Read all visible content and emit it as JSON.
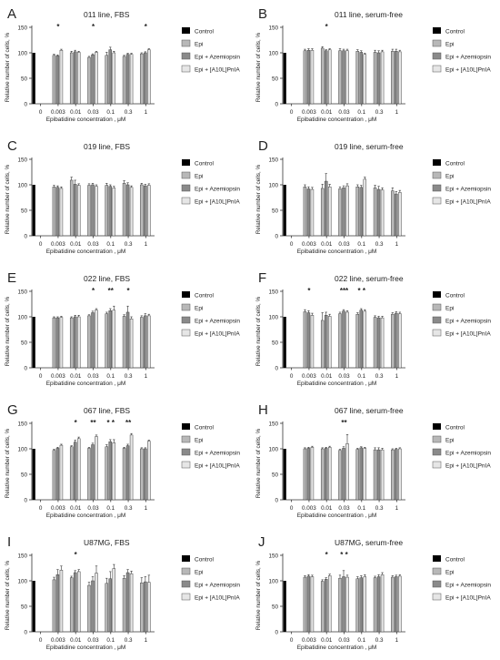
{
  "figure": {
    "legend_entries": [
      "Control",
      "Epi",
      "Epi + Azemiopsin",
      "Epi + [A10L]PnIA"
    ],
    "legend_colors": [
      "#000000",
      "#b8b8b8",
      "#8a8a8a",
      "#e6e6e6"
    ]
  },
  "chart_data": [
    {
      "panel": "A",
      "title": "011 line, FBS",
      "type": "bar",
      "xlabel": "Epibatidine concentration , μM",
      "ylabel": "Relative number of cells, %",
      "ylim": [
        0,
        150
      ],
      "yticks": [
        0,
        50,
        100,
        150
      ],
      "categories": [
        "0",
        "0.003",
        "0.01",
        "0.03",
        "0.1",
        "0.3",
        "1"
      ],
      "control": 100,
      "series": [
        {
          "name": "Epi",
          "values": [
            null,
            95,
            100,
            91,
            95,
            93,
            98
          ]
        },
        {
          "name": "Epi + Azemiopsin",
          "values": [
            null,
            94,
            102,
            96,
            106,
            97,
            100
          ]
        },
        {
          "name": "Epi + [A10L]PnIA",
          "values": [
            null,
            105,
            101,
            101,
            100,
            97,
            106
          ]
        }
      ],
      "errors": [
        [
          0,
          2,
          3,
          2,
          6,
          2,
          2
        ],
        [
          0,
          2,
          3,
          2,
          5,
          2,
          2
        ],
        [
          0,
          2,
          2,
          2,
          3,
          2,
          2
        ]
      ],
      "significance": [
        {
          "group": 1,
          "label": "*"
        },
        {
          "group": 3,
          "label": "*"
        },
        {
          "group": 6,
          "label": "*"
        }
      ]
    },
    {
      "panel": "B",
      "title": "011 line, serum-free",
      "type": "bar",
      "xlabel": "Epibatidine concentration , μM",
      "ylabel": "Relative number of cells, %",
      "ylim": [
        0,
        150
      ],
      "yticks": [
        0,
        50,
        100,
        150
      ],
      "categories": [
        "0",
        "0.003",
        "0.01",
        "0.03",
        "0.1",
        "0.3",
        "1"
      ],
      "control": 100,
      "series": [
        {
          "name": "Epi",
          "values": [
            null,
            104,
            109,
            104,
            103,
            101,
            103
          ]
        },
        {
          "name": "Epi + Azemiopsin",
          "values": [
            null,
            105,
            104,
            104,
            101,
            100,
            103
          ]
        },
        {
          "name": "Epi + [A10L]PnIA",
          "values": [
            null,
            105,
            106,
            104,
            97,
            102,
            102
          ]
        }
      ],
      "errors": [
        [
          0,
          3,
          3,
          4,
          3,
          4,
          4
        ],
        [
          0,
          3,
          2,
          3,
          3,
          4,
          4
        ],
        [
          0,
          3,
          2,
          3,
          2,
          3,
          3
        ]
      ],
      "significance": [
        {
          "group": 2,
          "label": "*"
        }
      ]
    },
    {
      "panel": "C",
      "title": "019 line, FBS",
      "type": "bar",
      "xlabel": "Epibatidine concentration , μM",
      "ylabel": "Relative number of cells, %",
      "ylim": [
        0,
        150
      ],
      "yticks": [
        0,
        50,
        100,
        150
      ],
      "categories": [
        "0",
        "0.003",
        "0.01",
        "0.03",
        "0.1",
        "0.3",
        "1"
      ],
      "control": 100,
      "series": [
        {
          "name": "Epi",
          "values": [
            null,
            96,
            109,
            99,
            99,
            103,
            100
          ]
        },
        {
          "name": "Epi + Azemiopsin",
          "values": [
            null,
            95,
            101,
            100,
            97,
            100,
            98
          ]
        },
        {
          "name": "Epi + [A10L]PnIA",
          "values": [
            null,
            93,
            99,
            97,
            94,
            95,
            99
          ]
        }
      ],
      "errors": [
        [
          0,
          3,
          6,
          3,
          4,
          5,
          3
        ],
        [
          0,
          3,
          8,
          3,
          3,
          4,
          3
        ],
        [
          0,
          3,
          3,
          3,
          3,
          3,
          3
        ]
      ],
      "significance": []
    },
    {
      "panel": "D",
      "title": "019 line, serum-free",
      "type": "bar",
      "xlabel": "Epibatidine concentration , μM",
      "ylabel": "Relative number of cells, %",
      "ylim": [
        0,
        150
      ],
      "yticks": [
        0,
        50,
        100,
        150
      ],
      "categories": [
        "0",
        "0.003",
        "0.01",
        "0.03",
        "0.1",
        "0.3",
        "1"
      ],
      "control": 100,
      "series": [
        {
          "name": "Epi",
          "values": [
            null,
            96,
            93,
            92,
            96,
            94,
            88
          ]
        },
        {
          "name": "Epi + Azemiopsin",
          "values": [
            null,
            92,
            107,
            94,
            95,
            91,
            82
          ]
        },
        {
          "name": "Epi + [A10L]PnIA",
          "values": [
            null,
            91,
            96,
            98,
            111,
            90,
            85
          ]
        }
      ],
      "errors": [
        [
          0,
          4,
          8,
          4,
          4,
          5,
          6
        ],
        [
          0,
          4,
          15,
          4,
          4,
          6,
          5
        ],
        [
          0,
          4,
          5,
          4,
          4,
          4,
          4
        ]
      ],
      "significance": []
    },
    {
      "panel": "E",
      "title": "022 line, FBS",
      "type": "bar",
      "xlabel": "Epibatidine concentration , μM",
      "ylabel": "Relative number of cells, %",
      "ylim": [
        0,
        150
      ],
      "yticks": [
        0,
        50,
        100,
        150
      ],
      "categories": [
        "0",
        "0.003",
        "0.01",
        "0.03",
        "0.1",
        "0.3",
        "1"
      ],
      "control": 100,
      "series": [
        {
          "name": "Epi",
          "values": [
            null,
            98,
            98,
            102,
            106,
            101,
            99
          ]
        },
        {
          "name": "Epi + Azemiopsin",
          "values": [
            null,
            98,
            100,
            108,
            112,
            109,
            102
          ]
        },
        {
          "name": "Epi + [A10L]PnIA",
          "values": [
            null,
            99,
            100,
            113,
            113,
            96,
            102
          ]
        }
      ],
      "errors": [
        [
          0,
          2,
          2,
          2,
          3,
          3,
          3
        ],
        [
          0,
          2,
          3,
          3,
          4,
          12,
          4
        ],
        [
          0,
          2,
          3,
          3,
          8,
          4,
          3
        ]
      ],
      "significance": [
        {
          "group": 3,
          "label": "*"
        },
        {
          "group": 4,
          "label": "**"
        },
        {
          "group": 5,
          "label": "*"
        }
      ]
    },
    {
      "panel": "F",
      "title": "022 line, serum-free",
      "type": "bar",
      "xlabel": "Epibatidine concentration , μM",
      "ylabel": "Relative number of cells, %",
      "ylim": [
        0,
        150
      ],
      "yticks": [
        0,
        50,
        100,
        150
      ],
      "categories": [
        "0",
        "0.003",
        "0.01",
        "0.03",
        "0.1",
        "0.3",
        "1"
      ],
      "control": 100,
      "series": [
        {
          "name": "Epi",
          "values": [
            null,
            110,
            93,
            106,
            105,
            99,
            105
          ]
        },
        {
          "name": "Epi + Azemiopsin",
          "values": [
            null,
            108,
            103,
            111,
            113,
            98,
            107
          ]
        },
        {
          "name": "Epi + [A10L]PnIA",
          "values": [
            null,
            103,
            101,
            109,
            111,
            98,
            106
          ]
        }
      ],
      "errors": [
        [
          0,
          4,
          15,
          3,
          3,
          3,
          3
        ],
        [
          0,
          4,
          6,
          3,
          3,
          3,
          3
        ],
        [
          0,
          4,
          4,
          3,
          3,
          3,
          3
        ]
      ],
      "significance": [
        {
          "group": 1,
          "label": "*"
        },
        {
          "group": 3,
          "label": "***"
        },
        {
          "group": 4,
          "label": "* *"
        }
      ]
    },
    {
      "panel": "G",
      "title": "067 line, FBS",
      "type": "bar",
      "xlabel": "Epibatidine concentration , μM",
      "ylabel": "Relative number of cells, %",
      "ylim": [
        0,
        150
      ],
      "yticks": [
        0,
        50,
        100,
        150
      ],
      "categories": [
        "0",
        "0.003",
        "0.01",
        "0.03",
        "0.1",
        "0.3",
        "1"
      ],
      "control": 100,
      "series": [
        {
          "name": "Epi",
          "values": [
            null,
            97,
            104,
            101,
            104,
            101,
            100
          ]
        },
        {
          "name": "Epi + Azemiopsin",
          "values": [
            null,
            101,
            113,
            108,
            114,
            106,
            100
          ]
        },
        {
          "name": "Epi + [A10L]PnIA",
          "values": [
            null,
            107,
            120,
            124,
            112,
            127,
            115
          ]
        }
      ],
      "errors": [
        [
          0,
          2,
          2,
          2,
          4,
          2,
          2
        ],
        [
          0,
          2,
          4,
          3,
          4,
          3,
          2
        ],
        [
          0,
          2,
          3,
          3,
          6,
          3,
          2
        ]
      ],
      "significance": [
        {
          "group": 2,
          "label": "*"
        },
        {
          "group": 3,
          "label": "**"
        },
        {
          "group": 4,
          "label": "* *"
        },
        {
          "group": 5,
          "label": "**"
        }
      ]
    },
    {
      "panel": "H",
      "title": "067 line, serum-free",
      "type": "bar",
      "xlabel": "Epibatidine concentration , μM",
      "ylabel": "Relative number of cells, %",
      "ylim": [
        0,
        150
      ],
      "yticks": [
        0,
        50,
        100,
        150
      ],
      "categories": [
        "0",
        "0.003",
        "0.01",
        "0.03",
        "0.1",
        "0.3",
        "1"
      ],
      "control": 100,
      "series": [
        {
          "name": "Epi",
          "values": [
            null,
            100,
            100,
            97,
            99,
            98,
            98
          ]
        },
        {
          "name": "Epi + Azemiopsin",
          "values": [
            null,
            101,
            101,
            101,
            102,
            98,
            99
          ]
        },
        {
          "name": "Epi + [A10L]PnIA",
          "values": [
            null,
            103,
            103,
            110,
            101,
            98,
            100
          ]
        }
      ],
      "errors": [
        [
          0,
          2,
          2,
          2,
          2,
          4,
          2
        ],
        [
          0,
          2,
          2,
          3,
          2,
          4,
          2
        ],
        [
          0,
          2,
          2,
          18,
          2,
          3,
          2
        ]
      ],
      "significance": [
        {
          "group": 3,
          "label": "**"
        }
      ]
    },
    {
      "panel": "I",
      "title": "U87MG, FBS",
      "type": "bar",
      "xlabel": "Epibatidine concentration , μM",
      "ylabel": "Relative number of cells, %",
      "ylim": [
        0,
        150
      ],
      "yticks": [
        0,
        50,
        100,
        150
      ],
      "categories": [
        "0",
        "0.003",
        "0.01",
        "0.03",
        "0.1",
        "0.3",
        "1"
      ],
      "control": 100,
      "series": [
        {
          "name": "Epi",
          "values": [
            null,
            102,
            106,
            91,
            95,
            105,
            96
          ]
        },
        {
          "name": "Epi + Azemiopsin",
          "values": [
            null,
            112,
            116,
            100,
            104,
            116,
            98
          ]
        },
        {
          "name": "Epi + [A10L]PnIA",
          "values": [
            null,
            121,
            118,
            115,
            124,
            114,
            97
          ]
        }
      ],
      "errors": [
        [
          0,
          5,
          3,
          6,
          10,
          5,
          10
        ],
        [
          0,
          10,
          4,
          8,
          14,
          6,
          10
        ],
        [
          0,
          8,
          4,
          14,
          8,
          5,
          14
        ]
      ],
      "significance": [
        {
          "group": 2,
          "label": "*"
        }
      ]
    },
    {
      "panel": "J",
      "title": "U87MG, serum-free",
      "type": "bar",
      "xlabel": "Epibatidine concentration , μM",
      "ylabel": "Relative number of cells, %",
      "ylim": [
        0,
        150
      ],
      "yticks": [
        0,
        50,
        100,
        150
      ],
      "categories": [
        "0",
        "0.003",
        "0.01",
        "0.03",
        "0.1",
        "0.3",
        "1"
      ],
      "control": 100,
      "series": [
        {
          "name": "Epi",
          "values": [
            null,
            107,
            99,
            105,
            104,
            106,
            107
          ]
        },
        {
          "name": "Epi + Azemiopsin",
          "values": [
            null,
            109,
            103,
            108,
            106,
            108,
            108
          ]
        },
        {
          "name": "Epi + [A10L]PnIA",
          "values": [
            null,
            108,
            110,
            107,
            108,
            112,
            109
          ]
        }
      ],
      "errors": [
        [
          0,
          3,
          3,
          6,
          4,
          3,
          3
        ],
        [
          0,
          3,
          3,
          12,
          4,
          4,
          3
        ],
        [
          0,
          3,
          3,
          4,
          4,
          4,
          3
        ]
      ],
      "significance": [
        {
          "group": 2,
          "label": "*"
        },
        {
          "group": 3,
          "label": "* *"
        }
      ]
    }
  ]
}
